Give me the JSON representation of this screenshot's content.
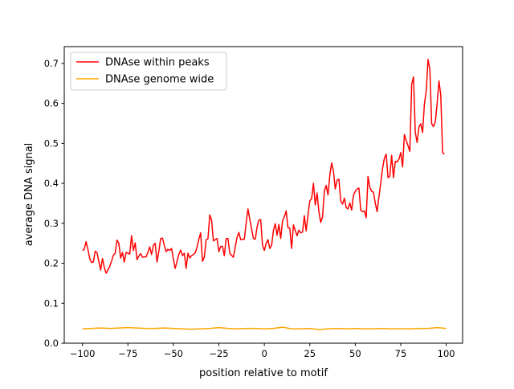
{
  "chart_data": {
    "type": "line",
    "title": "",
    "xlabel": "position relative to motif",
    "ylabel": "average DNA signal",
    "xlim": [
      -110,
      109
    ],
    "ylim": [
      0,
      0.742
    ],
    "xticks": [
      -100,
      -75,
      -50,
      -25,
      0,
      25,
      50,
      75,
      100
    ],
    "xtick_labels": [
      "−100",
      "−75",
      "−50",
      "−25",
      "0",
      "25",
      "50",
      "75",
      "100"
    ],
    "yticks": [
      0,
      0.1,
      0.2,
      0.3,
      0.4,
      0.5,
      0.6,
      0.7
    ],
    "ytick_labels": [
      "0.0",
      "0.1",
      "0.2",
      "0.3",
      "0.4",
      "0.5",
      "0.6",
      "0.7"
    ],
    "grid": false,
    "legend_position": "top-left",
    "series": [
      {
        "name": "DNAse within peaks",
        "color": "#ff0000",
        "x_start": -100,
        "x_step": 1,
        "values": [
          0.232,
          0.235,
          0.254,
          0.235,
          0.212,
          0.202,
          0.203,
          0.23,
          0.227,
          0.205,
          0.183,
          0.212,
          0.19,
          0.175,
          0.183,
          0.192,
          0.205,
          0.22,
          0.225,
          0.258,
          0.25,
          0.213,
          0.227,
          0.203,
          0.227,
          0.225,
          0.223,
          0.269,
          0.232,
          0.251,
          0.209,
          0.218,
          0.224,
          0.215,
          0.216,
          0.216,
          0.228,
          0.241,
          0.222,
          0.245,
          0.25,
          0.203,
          0.23,
          0.262,
          0.263,
          0.245,
          0.229,
          0.235,
          0.232,
          0.237,
          0.21,
          0.187,
          0.205,
          0.222,
          0.233,
          0.219,
          0.225,
          0.187,
          0.225,
          0.213,
          0.219,
          0.222,
          0.226,
          0.24,
          0.26,
          0.276,
          0.205,
          0.215,
          0.259,
          0.261,
          0.321,
          0.308,
          0.256,
          0.259,
          0.262,
          0.229,
          0.242,
          0.242,
          0.219,
          0.262,
          0.262,
          0.225,
          0.22,
          0.215,
          0.24,
          0.265,
          0.277,
          0.259,
          0.26,
          0.26,
          0.3,
          0.336,
          0.31,
          0.286,
          0.262,
          0.26,
          0.29,
          0.308,
          0.309,
          0.245,
          0.232,
          0.25,
          0.259,
          0.237,
          0.245,
          0.282,
          0.299,
          0.27,
          0.297,
          0.262,
          0.306,
          0.316,
          0.331,
          0.289,
          0.288,
          0.237,
          0.296,
          0.282,
          0.269,
          0.283,
          0.276,
          0.278,
          0.319,
          0.281,
          0.32,
          0.356,
          0.362,
          0.4,
          0.346,
          0.376,
          0.329,
          0.302,
          0.316,
          0.38,
          0.395,
          0.371,
          0.42,
          0.451,
          0.43,
          0.386,
          0.408,
          0.41,
          0.356,
          0.348,
          0.363,
          0.339,
          0.336,
          0.351,
          0.333,
          0.37,
          0.38,
          0.386,
          0.388,
          0.333,
          0.329,
          0.331,
          0.314,
          0.417,
          0.39,
          0.38,
          0.378,
          0.35,
          0.329,
          0.366,
          0.4,
          0.437,
          0.463,
          0.473,
          0.414,
          0.418,
          0.47,
          0.414,
          0.455,
          0.453,
          0.46,
          0.477,
          0.441,
          0.522,
          0.507,
          0.494,
          0.48,
          0.648,
          0.666,
          0.527,
          0.502,
          0.541,
          0.549,
          0.527,
          0.598,
          0.631,
          0.71,
          0.685,
          0.549,
          0.542,
          0.554,
          0.6,
          0.656,
          0.621,
          0.477,
          0.473
        ]
      },
      {
        "name": "DNAse genome wide",
        "color": "#ffa500",
        "x_start": -100,
        "x_step": 5,
        "values": [
          0.036,
          0.037,
          0.038,
          0.037,
          0.038,
          0.039,
          0.038,
          0.037,
          0.037,
          0.038,
          0.037,
          0.036,
          0.035,
          0.036,
          0.037,
          0.039,
          0.037,
          0.036,
          0.037,
          0.037,
          0.036,
          0.037,
          0.04,
          0.036,
          0.036,
          0.037,
          0.034,
          0.036,
          0.037,
          0.036,
          0.037,
          0.036,
          0.036,
          0.037,
          0.036,
          0.036,
          0.036,
          0.037,
          0.037,
          0.039,
          0.037
        ]
      }
    ]
  }
}
